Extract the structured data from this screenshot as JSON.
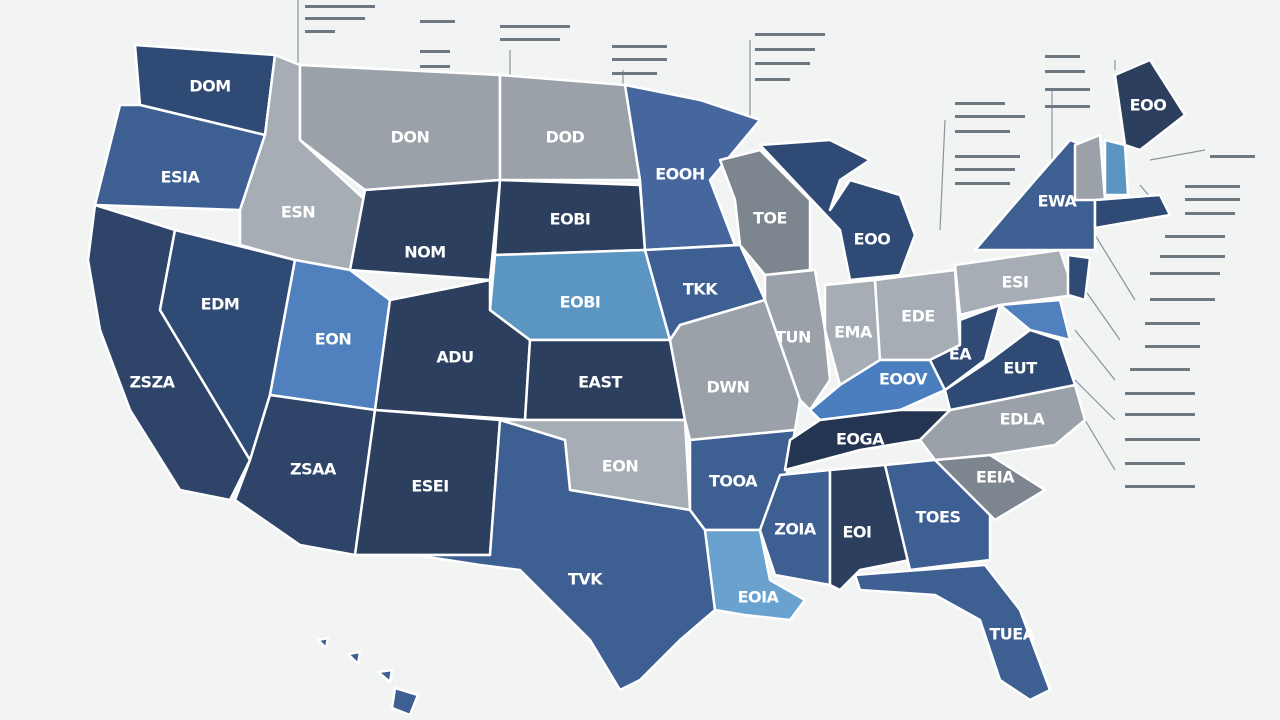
{
  "map": {
    "states": [
      {
        "label": "DOM"
      },
      {
        "label": "ESIA"
      },
      {
        "label": "ZSZA"
      },
      {
        "label": "EDM"
      },
      {
        "label": "ESN"
      },
      {
        "label": "DON"
      },
      {
        "label": "NOM"
      },
      {
        "label": "EON"
      },
      {
        "label": "ADU"
      },
      {
        "label": "ZSAA"
      },
      {
        "label": "ESEI"
      },
      {
        "label": "DOD"
      },
      {
        "label": "EOBI"
      },
      {
        "label": "EOBI"
      },
      {
        "label": "EAST"
      },
      {
        "label": "EON"
      },
      {
        "label": "TVK"
      },
      {
        "label": "EOOH"
      },
      {
        "label": "TKK"
      },
      {
        "label": "DWN"
      },
      {
        "label": "TOOA"
      },
      {
        "label": "EOIA"
      },
      {
        "label": "TOE"
      },
      {
        "label": "TUN"
      },
      {
        "label": "EOO"
      },
      {
        "label": "EMA"
      },
      {
        "label": "EDE"
      },
      {
        "label": "EOOV"
      },
      {
        "label": "EOGA"
      },
      {
        "label": "ZOIA"
      },
      {
        "label": "EOI"
      },
      {
        "label": "TOES"
      },
      {
        "label": "TUEA"
      },
      {
        "label": "EEIA"
      },
      {
        "label": "EDLA"
      },
      {
        "label": "EUT"
      },
      {
        "label": "EA"
      },
      {
        "label": "ESI"
      },
      {
        "label": "EWA"
      },
      {
        "label": "EOO"
      }
    ]
  }
}
